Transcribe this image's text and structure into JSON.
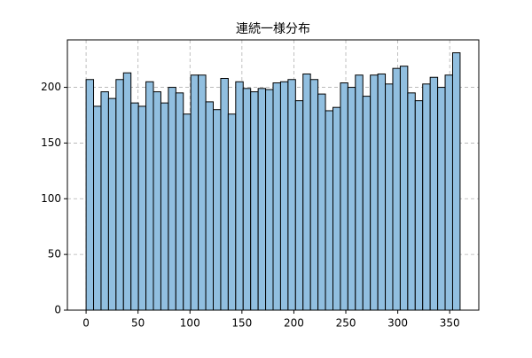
{
  "chart_data": {
    "type": "histogram",
    "title": "連続一様分布",
    "bins": [
      0,
      7.2,
      14.4,
      21.6,
      28.8,
      36,
      43.2,
      50.4,
      57.6,
      64.8,
      72,
      79.2,
      86.4,
      93.6,
      100.8,
      108,
      115.2,
      122.4,
      129.6,
      136.8,
      144,
      151.2,
      158.4,
      165.6,
      172.8,
      180,
      187.2,
      194.4,
      201.6,
      208.8,
      216,
      223.2,
      230.4,
      237.6,
      244.8,
      252,
      259.2,
      266.4,
      273.6,
      280.8,
      288,
      295.2,
      302.4,
      309.6,
      316.8,
      324,
      331.2,
      338.4,
      345.6,
      352.8,
      360
    ],
    "counts": [
      207,
      183,
      196,
      190,
      207,
      213,
      186,
      183,
      205,
      196,
      186,
      200,
      195,
      176,
      211,
      211,
      187,
      180,
      208,
      176,
      205,
      199,
      196,
      199,
      198,
      204,
      205,
      207,
      188,
      212,
      207,
      194,
      179,
      182,
      204,
      200,
      211,
      192,
      211,
      212,
      203,
      217,
      219,
      195,
      188,
      203,
      209,
      200,
      211,
      231
    ],
    "color": "#91bfe0",
    "edgecolor": "#000000",
    "xlim": [
      -18,
      378
    ],
    "xticks": [
      0,
      50,
      100,
      150,
      200,
      250,
      300,
      350
    ],
    "ylim": [
      0,
      242.6
    ],
    "yticks": [
      0,
      50,
      100,
      150,
      200
    ],
    "grid": true
  }
}
